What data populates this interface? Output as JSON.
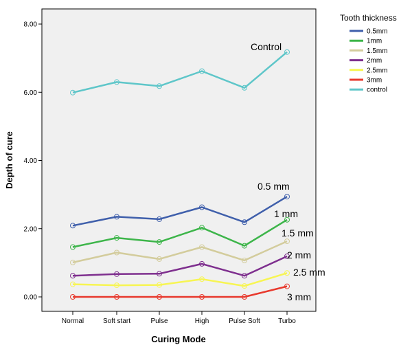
{
  "chart_data": {
    "type": "line",
    "xlabel": "Curing Mode",
    "ylabel": "Depth of cure",
    "categories": [
      "Normal",
      "Soft start",
      "Pulse",
      "High",
      "Pulse Soft",
      "Turbo"
    ],
    "ylim": [
      -0.5,
      8.4
    ],
    "yticks": [
      "0.00",
      "2.00",
      "4.00",
      "6.00",
      "8.00"
    ],
    "ytick_values": [
      0,
      2,
      4,
      6,
      8
    ],
    "grid": false,
    "legend_title": "Tooth thickness",
    "legend_position": "right",
    "series": [
      {
        "name": "0.5mm",
        "color": "#3f5fab",
        "values": [
          2.09,
          2.35,
          2.28,
          2.63,
          2.19,
          2.94
        ],
        "annotation": "0.5 mm"
      },
      {
        "name": "1mm",
        "color": "#3db54a",
        "values": [
          1.46,
          1.73,
          1.61,
          2.03,
          1.5,
          2.26
        ],
        "annotation": "1 mm"
      },
      {
        "name": "1.5mm",
        "color": "#d3cc9c",
        "values": [
          1.01,
          1.3,
          1.11,
          1.46,
          1.07,
          1.63
        ],
        "annotation": "1.5 mm"
      },
      {
        "name": "2mm",
        "color": "#7e2f8e",
        "values": [
          0.62,
          0.67,
          0.68,
          0.97,
          0.62,
          1.19
        ],
        "annotation": "2 mm"
      },
      {
        "name": "2.5mm",
        "color": "#f7f552",
        "values": [
          0.37,
          0.34,
          0.35,
          0.52,
          0.32,
          0.7
        ],
        "annotation": "2.5 mm"
      },
      {
        "name": "3mm",
        "color": "#e8392d",
        "values": [
          0.0,
          0.0,
          0.0,
          0.0,
          0.0,
          0.31
        ],
        "annotation": "3 mm"
      },
      {
        "name": "control",
        "color": "#5ec6c9",
        "values": [
          5.99,
          6.3,
          6.18,
          6.62,
          6.13,
          7.18
        ],
        "annotation": "Control"
      }
    ]
  }
}
